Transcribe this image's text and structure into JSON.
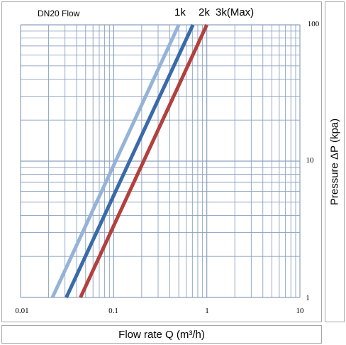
{
  "chart_data": {
    "type": "line",
    "title": "DN20  Flow",
    "xlabel": "Flow  rate Q (m³/h)",
    "ylabel": "Pressure  ΔP (kpa)",
    "x_scale": "log",
    "y_scale": "log",
    "xlim": [
      0.01,
      10
    ],
    "ylim": [
      1,
      100
    ],
    "x_ticks": [
      "0.01",
      "0.1",
      "1",
      "10"
    ],
    "y_ticks": [
      "1",
      "10",
      "100"
    ],
    "grid": true,
    "legend_labels": [
      "1k",
      "2k",
      "3k(Max)"
    ],
    "series": [
      {
        "name": "1k",
        "color": "#95b3d7",
        "x": [
          0.022,
          0.5
        ],
        "y": [
          1,
          100
        ]
      },
      {
        "name": "2k",
        "color": "#3a6aa8",
        "x": [
          0.031,
          0.71
        ],
        "y": [
          1,
          100
        ]
      },
      {
        "name": "3k(Max)",
        "color": "#b2403c",
        "x": [
          0.044,
          1.0
        ],
        "y": [
          1,
          100
        ]
      }
    ]
  }
}
